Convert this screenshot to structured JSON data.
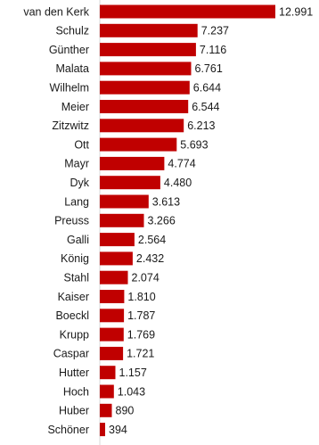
{
  "chart_data": {
    "type": "bar",
    "orientation": "horizontal",
    "bar_color": "#c00000",
    "categories": [
      "van den Kerk",
      "Schulz",
      "Günther",
      "Malata",
      "Wilhelm",
      "Meier",
      "Zitzwitz",
      "Ott",
      "Mayr",
      "Dyk",
      "Lang",
      "Preuss",
      "Galli",
      "König",
      "Stahl",
      "Kaiser",
      "Boeckl",
      "Krupp",
      "Caspar",
      "Hutter",
      "Hoch",
      "Huber",
      "Schöner"
    ],
    "values": [
      12991,
      7237,
      7116,
      6761,
      6644,
      6544,
      6213,
      5693,
      4774,
      4480,
      3613,
      3266,
      2564,
      2432,
      2074,
      1810,
      1787,
      1769,
      1721,
      1157,
      1043,
      890,
      394
    ],
    "value_labels": [
      "12.991",
      "7.237",
      "7.116",
      "6.761",
      "6.644",
      "6.544",
      "6.213",
      "5.693",
      "4.774",
      "4.480",
      "3.613",
      "3.266",
      "2.564",
      "2.432",
      "2.074",
      "1.810",
      "1.787",
      "1.769",
      "1.721",
      "1.157",
      "1.043",
      "890",
      "394"
    ],
    "title": "",
    "xlabel": "",
    "ylabel": "",
    "grid": false,
    "legend": "none"
  }
}
